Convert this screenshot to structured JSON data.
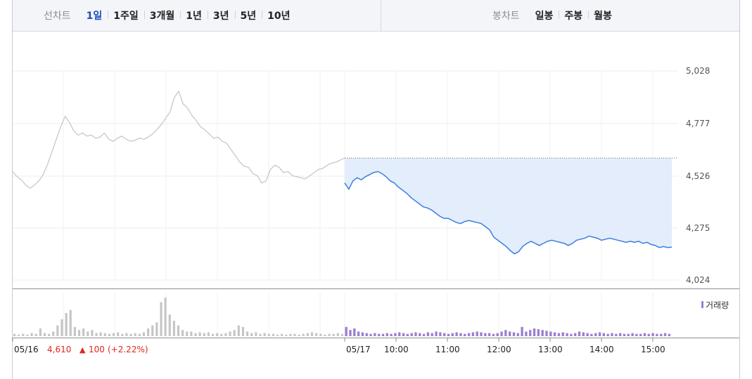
{
  "toolbar": {
    "line_chart_label": "선차트",
    "periods": [
      "1일",
      "1주일",
      "3개월",
      "1년",
      "3년",
      "5년",
      "10년"
    ],
    "active_period": "1일",
    "candle_label": "봉차트",
    "candle_periods": [
      "일봉",
      "주봉",
      "월봉"
    ]
  },
  "legend": {
    "volume_label": "거래량",
    "volume_color": "#9a7fd1"
  },
  "summary": {
    "prev_date": "05/16",
    "close": "4,610",
    "change_symbol": "▲",
    "change": "100",
    "change_pct": "(+2.22%)",
    "up_color": "#e0251b"
  },
  "chart_data": {
    "type": "line",
    "y_ticks": [
      "5,028",
      "4,777",
      "4,526",
      "4,275",
      "4,024"
    ],
    "ylim": [
      4024,
      5028
    ],
    "reference_price": 4610,
    "x_tick_labels": [
      "05/17",
      "10:00",
      "11:00",
      "12:00",
      "13:00",
      "14:00",
      "15:00"
    ],
    "colors": {
      "prev": "#c8c8c8",
      "today": "#3a7fe0",
      "fill": "#e3edfb"
    },
    "series": [
      {
        "day": "05/16",
        "values": [
          4545,
          4520,
          4505,
          4480,
          4465,
          4480,
          4500,
          4530,
          4580,
          4640,
          4700,
          4760,
          4810,
          4780,
          4740,
          4720,
          4730,
          4715,
          4720,
          4705,
          4710,
          4730,
          4700,
          4690,
          4705,
          4715,
          4700,
          4690,
          4695,
          4705,
          4700,
          4710,
          4725,
          4745,
          4770,
          4800,
          4830,
          4900,
          4930,
          4870,
          4850,
          4815,
          4790,
          4760,
          4745,
          4725,
          4705,
          4710,
          4690,
          4680,
          4650,
          4620,
          4590,
          4570,
          4565,
          4535,
          4525,
          4490,
          4500,
          4555,
          4575,
          4565,
          4540,
          4545,
          4525,
          4520,
          4515,
          4510,
          4525,
          4540,
          4555,
          4560,
          4575,
          4585,
          4590,
          4600,
          4610
        ]
      },
      {
        "day": "05/17",
        "values": [
          4490,
          4460,
          4500,
          4515,
          4505,
          4520,
          4530,
          4540,
          4545,
          4535,
          4520,
          4500,
          4490,
          4470,
          4455,
          4440,
          4420,
          4405,
          4390,
          4375,
          4370,
          4360,
          4345,
          4330,
          4320,
          4320,
          4310,
          4300,
          4295,
          4305,
          4310,
          4305,
          4300,
          4295,
          4280,
          4265,
          4230,
          4215,
          4200,
          4185,
          4165,
          4150,
          4160,
          4185,
          4200,
          4210,
          4200,
          4190,
          4200,
          4210,
          4215,
          4210,
          4205,
          4200,
          4190,
          4200,
          4215,
          4220,
          4225,
          4235,
          4230,
          4225,
          4215,
          4220,
          4225,
          4220,
          4215,
          4210,
          4205,
          4210,
          4205,
          4210,
          4200,
          4205,
          4195,
          4190,
          4180,
          4185,
          4180,
          4182
        ]
      }
    ],
    "volume": {
      "prev": [
        3,
        2,
        3,
        2,
        4,
        3,
        10,
        4,
        3,
        6,
        14,
        22,
        30,
        34,
        12,
        8,
        10,
        6,
        8,
        4,
        5,
        4,
        3,
        4,
        5,
        3,
        4,
        3,
        4,
        3,
        5,
        10,
        14,
        18,
        44,
        50,
        28,
        20,
        14,
        8,
        6,
        6,
        4,
        5,
        4,
        5,
        3,
        4,
        3,
        4,
        6,
        8,
        14,
        12,
        6,
        4,
        5,
        3,
        4,
        3,
        3,
        2,
        3,
        2,
        3,
        3,
        2,
        3,
        4,
        5,
        4,
        3,
        2,
        3,
        3,
        4,
        3
      ],
      "today": [
        12,
        8,
        10,
        6,
        5,
        4,
        3,
        4,
        3,
        3,
        4,
        3,
        4,
        5,
        4,
        3,
        4,
        5,
        4,
        3,
        5,
        4,
        6,
        5,
        4,
        3,
        4,
        5,
        4,
        3,
        4,
        5,
        6,
        5,
        4,
        4,
        3,
        4,
        6,
        8,
        6,
        5,
        4,
        12,
        6,
        8,
        10,
        9,
        8,
        7,
        6,
        5,
        4,
        5,
        4,
        3,
        4,
        6,
        5,
        4,
        3,
        4,
        5,
        4,
        3,
        4,
        3,
        4,
        3,
        3,
        4,
        3,
        3,
        4,
        3,
        4,
        3,
        3,
        4,
        3
      ]
    }
  }
}
